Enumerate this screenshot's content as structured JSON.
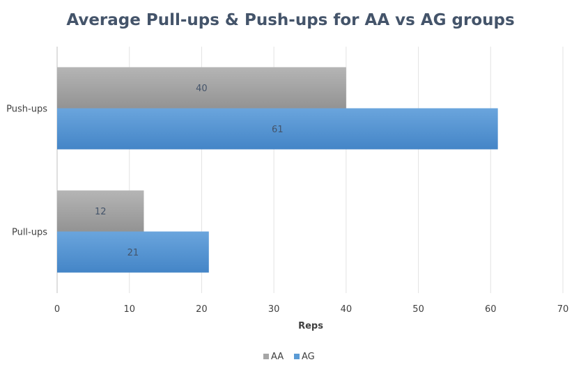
{
  "chart_data": {
    "type": "bar",
    "orientation": "horizontal",
    "title": "Average Pull-ups & Push-ups for AA vs AG groups",
    "xlabel": "Reps",
    "ylabel": "",
    "categories": [
      "Pull-ups",
      "Push-ups"
    ],
    "series": [
      {
        "name": "AA",
        "values": [
          12,
          40
        ],
        "color": "#a6a6a6"
      },
      {
        "name": "AG",
        "values": [
          21,
          61
        ],
        "color": "#5b9bd5"
      }
    ],
    "xlim": [
      0,
      70
    ],
    "xticks": [
      0,
      10,
      20,
      30,
      40,
      50,
      60,
      70
    ],
    "grid": true,
    "legend_position": "bottom",
    "data_labels": true
  }
}
